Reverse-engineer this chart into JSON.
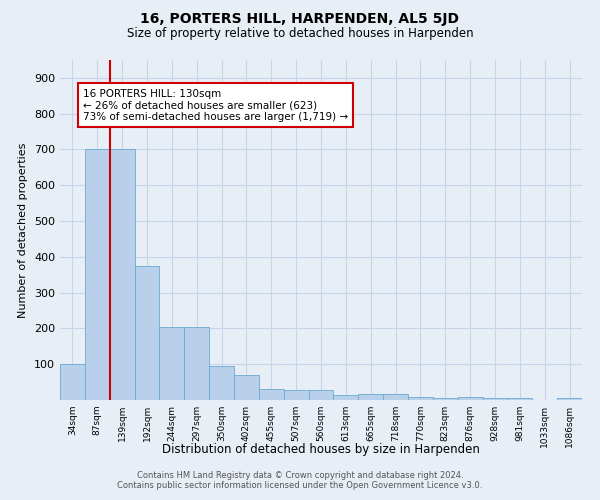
{
  "title": "16, PORTERS HILL, HARPENDEN, AL5 5JD",
  "subtitle": "Size of property relative to detached houses in Harpenden",
  "xlabel": "Distribution of detached houses by size in Harpenden",
  "ylabel": "Number of detached properties",
  "bin_labels": [
    "34sqm",
    "87sqm",
    "139sqm",
    "192sqm",
    "244sqm",
    "297sqm",
    "350sqm",
    "402sqm",
    "455sqm",
    "507sqm",
    "560sqm",
    "613sqm",
    "665sqm",
    "718sqm",
    "770sqm",
    "823sqm",
    "876sqm",
    "928sqm",
    "981sqm",
    "1033sqm",
    "1086sqm"
  ],
  "bar_heights": [
    100,
    700,
    700,
    375,
    205,
    205,
    95,
    70,
    30,
    28,
    28,
    15,
    18,
    18,
    7,
    5,
    7,
    5,
    5,
    1,
    5
  ],
  "bar_color": "#b8d0ea",
  "bar_edge_color": "#6aaad4",
  "grid_color": "#c8d4e8",
  "background_color": "#e8eef6",
  "annotation_text": "16 PORTERS HILL: 130sqm\n← 26% of detached houses are smaller (623)\n73% of semi-detached houses are larger (1,719) →",
  "annotation_box_color": "#ffffff",
  "annotation_border_color": "#cc0000",
  "vline_color": "#cc0000",
  "vline_position": 1.5,
  "ylim": [
    0,
    950
  ],
  "yticks": [
    0,
    100,
    200,
    300,
    400,
    500,
    600,
    700,
    800,
    900
  ],
  "footer": "Contains HM Land Registry data © Crown copyright and database right 2024.\nContains public sector information licensed under the Open Government Licence v3.0."
}
